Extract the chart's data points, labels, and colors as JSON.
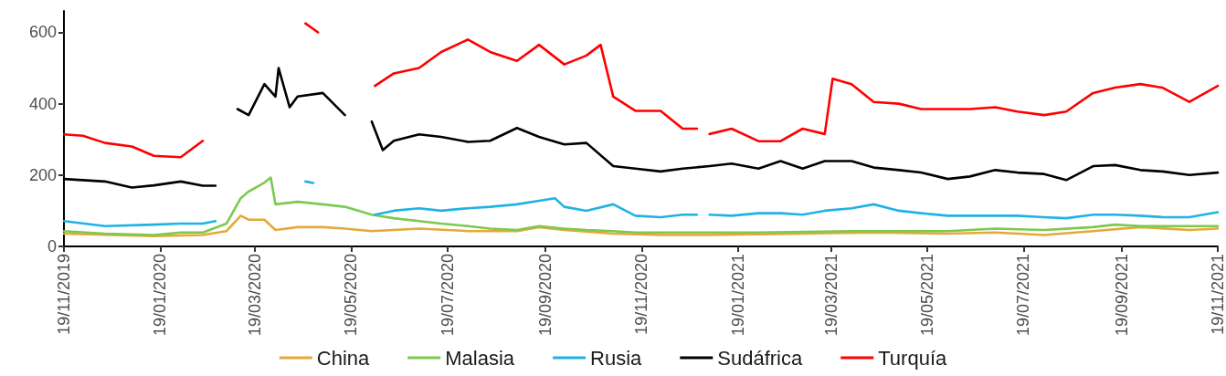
{
  "chart_data": {
    "type": "line",
    "xlim": [
      "2019-11-19",
      "2021-11-19"
    ],
    "ylim": [
      0,
      660
    ],
    "yticks": [
      0,
      200,
      400,
      600
    ],
    "xticks": [
      {
        "value": "2019-11-19",
        "label": "19/11/2019"
      },
      {
        "value": "2020-01-19",
        "label": "19/01/2020"
      },
      {
        "value": "2020-03-19",
        "label": "19/03/2020"
      },
      {
        "value": "2020-05-19",
        "label": "19/05/2020"
      },
      {
        "value": "2020-07-19",
        "label": "19/07/2020"
      },
      {
        "value": "2020-09-19",
        "label": "19/09/2020"
      },
      {
        "value": "2020-11-19",
        "label": "19/11/2020"
      },
      {
        "value": "2021-01-19",
        "label": "19/01/2021"
      },
      {
        "value": "2021-03-19",
        "label": "19/03/2021"
      },
      {
        "value": "2021-05-19",
        "label": "19/05/2021"
      },
      {
        "value": "2021-07-19",
        "label": "19/07/2021"
      },
      {
        "value": "2021-09-19",
        "label": "19/09/2021"
      },
      {
        "value": "2021-11-19",
        "label": "19/11/2021"
      }
    ],
    "grid": false,
    "legend": "bottom",
    "line_style": "solid",
    "series": [
      {
        "name": "China",
        "color": "#e5a939",
        "x": [
          "2019-11-19",
          "2020-01-15",
          "2020-02-15",
          "2020-03-01",
          "2020-03-10",
          "2020-03-15",
          "2020-03-25",
          "2020-04-01",
          "2020-04-15",
          "2020-05-01",
          "2020-05-15",
          "2020-06-01",
          "2020-07-01",
          "2020-08-01",
          "2020-09-01",
          "2020-09-15",
          "2020-10-01",
          "2020-11-01",
          "2020-12-01",
          "2021-01-01",
          "2021-03-01",
          "2021-04-15",
          "2021-06-01",
          "2021-07-01",
          "2021-08-01",
          "2021-09-01",
          "2021-10-01",
          "2021-11-01",
          "2021-11-19"
        ],
        "values": [
          36,
          29,
          32,
          43,
          86,
          75,
          75,
          46,
          54,
          54,
          50,
          43,
          50,
          43,
          43,
          54,
          46,
          36,
          32,
          32,
          36,
          39,
          36,
          39,
          32,
          43,
          54,
          46,
          50
        ]
      },
      {
        "name": "Malasia",
        "color": "#7dc94f",
        "x": [
          "2019-11-19",
          "2019-12-15",
          "2020-01-15",
          "2020-02-01",
          "2020-02-15",
          "2020-03-01",
          "2020-03-10",
          "2020-03-15",
          "2020-03-25",
          "2020-03-29",
          "2020-04-01",
          "2020-04-15",
          "2020-05-01",
          "2020-05-15",
          "2020-06-01",
          "2020-06-15",
          "2020-07-01",
          "2020-07-15",
          "2020-08-01",
          "2020-08-15",
          "2020-09-01",
          "2020-09-15",
          "2020-10-01",
          "2020-10-15",
          "2020-11-01",
          "2020-11-15",
          "2020-12-15",
          "2021-02-01",
          "2021-04-01",
          "2021-06-01",
          "2021-07-01",
          "2021-08-01",
          "2021-09-01",
          "2021-09-15",
          "2021-10-01",
          "2021-11-01",
          "2021-11-19"
        ],
        "values": [
          43,
          36,
          32,
          39,
          39,
          64,
          135,
          154,
          179,
          193,
          118,
          125,
          118,
          111,
          89,
          79,
          71,
          64,
          57,
          50,
          46,
          57,
          50,
          46,
          43,
          39,
          39,
          39,
          43,
          43,
          50,
          46,
          54,
          61,
          57,
          57,
          57
        ]
      },
      {
        "name": "Rusia",
        "color": "#1fb3e5",
        "x": [
          "2019-11-19",
          "2019-12-15",
          "2020-01-15",
          "2020-02-01",
          "2020-02-15",
          "2020-02-23",
          "2020-03-01",
          "2020-04-20",
          "2020-04-25",
          "2020-04-30",
          "2020-06-03",
          "2020-06-15",
          "2020-07-01",
          "2020-07-15",
          "2020-08-01",
          "2020-08-15",
          "2020-09-01",
          "2020-09-15",
          "2020-09-25",
          "2020-10-01",
          "2020-10-15",
          "2020-11-01",
          "2020-11-15",
          "2020-12-01",
          "2020-12-15",
          "2020-12-24",
          "2020-12-28",
          "2021-01-01",
          "2021-01-15",
          "2021-02-01",
          "2021-02-15",
          "2021-03-01",
          "2021-03-15",
          "2021-04-01",
          "2021-04-15",
          "2021-05-01",
          "2021-05-15",
          "2021-06-01",
          "2021-06-15",
          "2021-07-01",
          "2021-07-15",
          "2021-08-01",
          "2021-08-15",
          "2021-09-01",
          "2021-09-15",
          "2021-10-01",
          "2021-10-15",
          "2021-11-01",
          "2021-11-19"
        ],
        "values": [
          71,
          57,
          61,
          64,
          64,
          71,
          null,
          182,
          178,
          null,
          89,
          100,
          107,
          100,
          107,
          111,
          118,
          128,
          135,
          111,
          100,
          118,
          86,
          82,
          89,
          89,
          null,
          89,
          86,
          93,
          93,
          89,
          100,
          107,
          118,
          100,
          93,
          86,
          86,
          86,
          86,
          82,
          79,
          89,
          89,
          86,
          82,
          82,
          96
        ]
      },
      {
        "name": "Sudáfrica",
        "color": "#000000",
        "x": [
          "2019-11-19",
          "2019-12-15",
          "2020-01-01",
          "2020-01-15",
          "2020-02-01",
          "2020-02-15",
          "2020-02-23",
          "2020-03-01",
          "2020-03-08",
          "2020-03-15",
          "2020-03-25",
          "2020-04-01",
          "2020-04-03",
          "2020-04-10",
          "2020-04-15",
          "2020-05-01",
          "2020-05-15",
          "2020-05-22",
          "2020-05-27",
          "2020-06-01",
          "2020-06-08",
          "2020-06-15",
          "2020-07-01",
          "2020-07-15",
          "2020-08-01",
          "2020-08-15",
          "2020-09-01",
          "2020-09-15",
          "2020-10-01",
          "2020-10-15",
          "2020-11-01",
          "2020-11-15",
          "2020-12-01",
          "2020-12-15",
          "2021-01-01",
          "2021-01-15",
          "2021-02-01",
          "2021-02-15",
          "2021-03-01",
          "2021-03-15",
          "2021-04-01",
          "2021-04-15",
          "2021-05-01",
          "2021-05-15",
          "2021-06-01",
          "2021-06-15",
          "2021-07-01",
          "2021-07-15",
          "2021-08-01",
          "2021-08-15",
          "2021-09-01",
          "2021-09-15",
          "2021-10-01",
          "2021-10-15",
          "2021-11-01",
          "2021-11-19"
        ],
        "values": [
          189,
          182,
          165,
          171,
          182,
          170,
          170,
          null,
          385,
          368,
          455,
          420,
          500,
          390,
          420,
          430,
          368,
          null,
          null,
          350,
          270,
          296,
          314,
          307,
          293,
          296,
          332,
          307,
          286,
          290,
          225,
          218,
          210,
          218,
          225,
          232,
          218,
          239,
          218,
          239,
          239,
          221,
          214,
          207,
          189,
          196,
          214,
          207,
          203,
          186,
          225,
          228,
          214,
          210,
          200,
          207
        ]
      },
      {
        "name": "Turquía",
        "color": "#ff0000",
        "x": [
          "2019-11-19",
          "2019-12-01",
          "2019-12-15",
          "2020-01-01",
          "2020-01-15",
          "2020-02-01",
          "2020-02-15",
          "2020-02-20",
          "2020-04-20",
          "2020-04-28",
          "2020-05-01",
          "2020-06-03",
          "2020-06-15",
          "2020-07-01",
          "2020-07-15",
          "2020-08-01",
          "2020-08-15",
          "2020-09-01",
          "2020-09-15",
          "2020-10-01",
          "2020-10-15",
          "2020-10-24",
          "2020-11-01",
          "2020-11-15",
          "2020-12-01",
          "2020-12-15",
          "2020-12-24",
          "2020-12-28",
          "2021-01-01",
          "2021-01-15",
          "2021-02-01",
          "2021-02-15",
          "2021-03-01",
          "2021-03-15",
          "2021-03-20",
          "2021-04-01",
          "2021-04-15",
          "2021-05-01",
          "2021-05-15",
          "2021-06-01",
          "2021-06-15",
          "2021-07-01",
          "2021-07-15",
          "2021-08-01",
          "2021-08-15",
          "2021-09-01",
          "2021-09-15",
          "2021-10-01",
          "2021-10-15",
          "2021-11-01",
          "2021-11-19"
        ],
        "values": [
          314,
          310,
          290,
          280,
          254,
          250,
          296,
          null,
          625,
          600,
          null,
          450,
          485,
          500,
          545,
          580,
          545,
          520,
          565,
          510,
          535,
          565,
          420,
          380,
          380,
          330,
          330,
          null,
          315,
          330,
          295,
          295,
          330,
          315,
          470,
          455,
          405,
          400,
          385,
          385,
          385,
          390,
          378,
          368,
          378,
          430,
          445,
          455,
          445,
          405,
          450
        ]
      }
    ]
  }
}
